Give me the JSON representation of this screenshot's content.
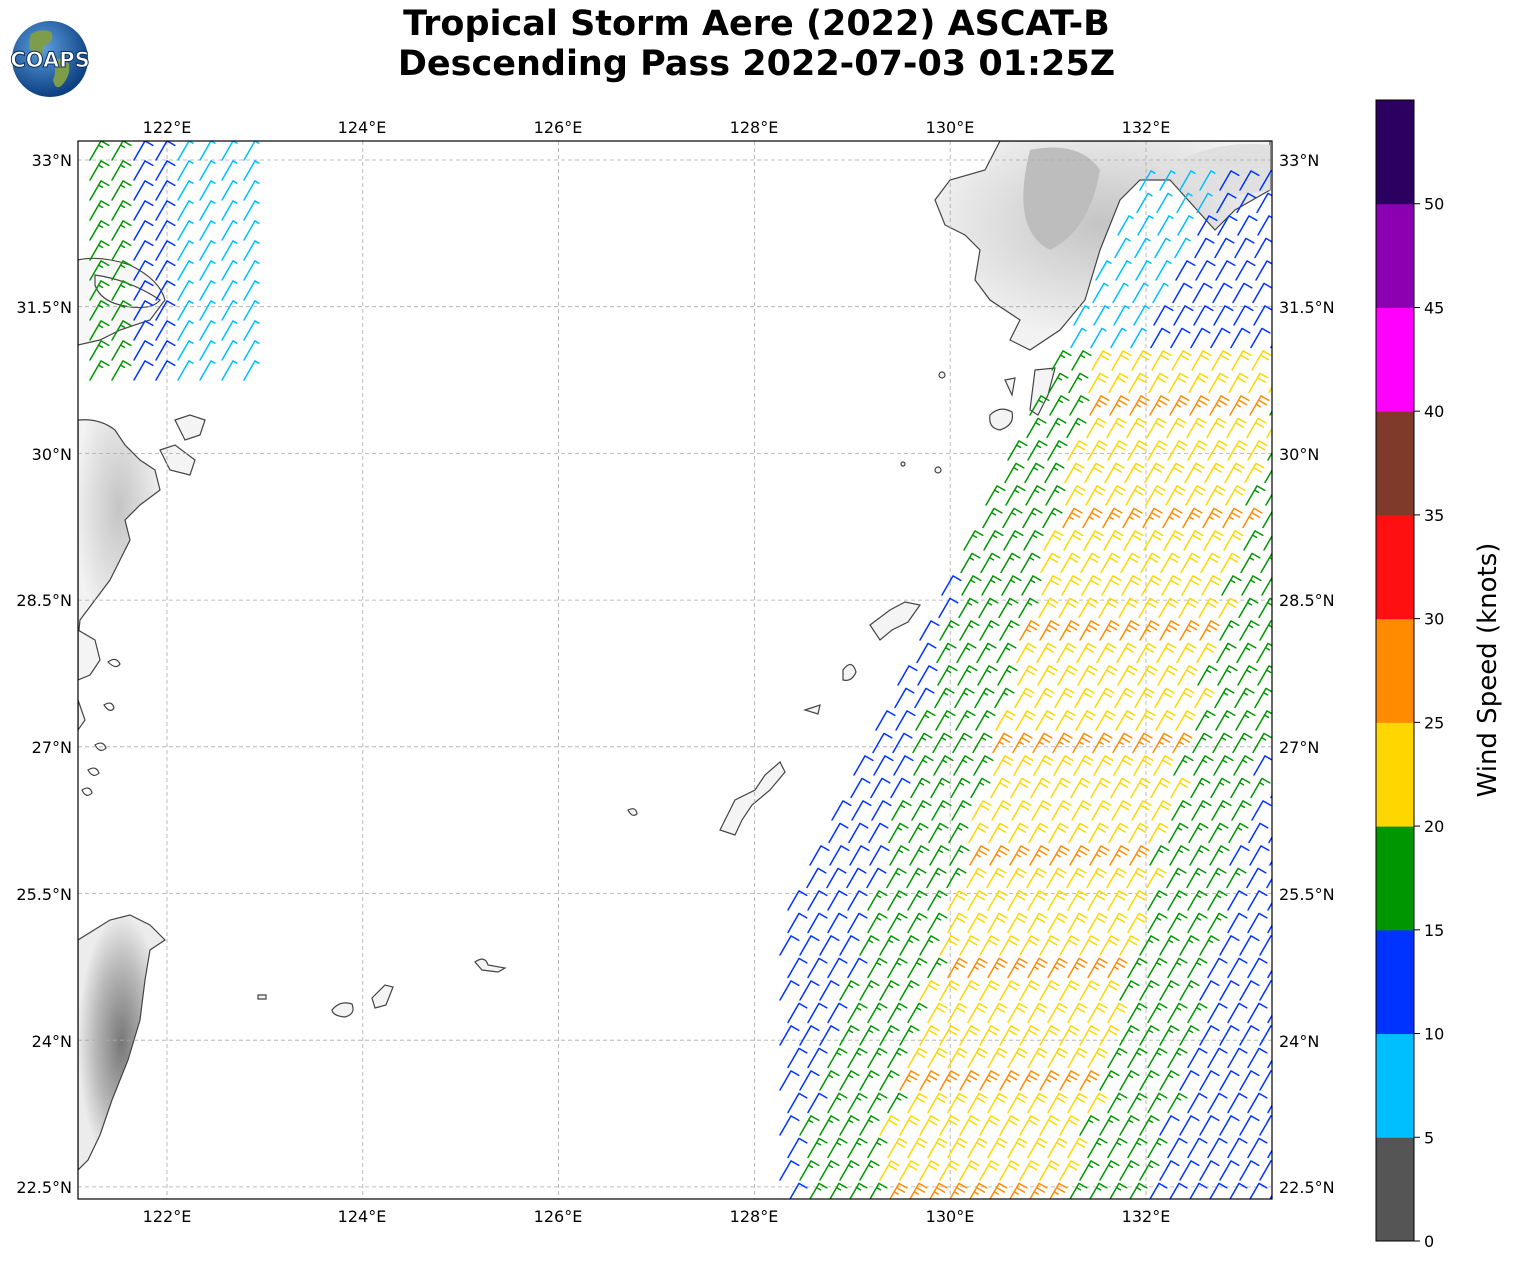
{
  "title": {
    "line1": "Tropical Storm Aere (2022) ASCAT-B",
    "line2": "Descending Pass 2022-07-03 01:25Z"
  },
  "logo": {
    "text": "COAPS",
    "ocean_color": "#1f5fa8",
    "land_color": "#6b8f3a"
  },
  "map": {
    "lon_ticks": [
      "122°E",
      "124°E",
      "126°E",
      "128°E",
      "130°E",
      "132°E"
    ],
    "lat_ticks": [
      "33°N",
      "31.5°N",
      "30°N",
      "28.5°N",
      "27°N",
      "25.5°N",
      "24°N",
      "22.5°N"
    ],
    "grid": true,
    "coastline_color": "#444444",
    "terrain": "grayscale shaded relief"
  },
  "colorbar": {
    "label": "Wind Speed (knots)",
    "ticks": [
      "0",
      "5",
      "10",
      "15",
      "20",
      "25",
      "30",
      "35",
      "40",
      "45",
      "50"
    ],
    "bins": [
      {
        "min": 0,
        "max": 5,
        "color": "#555555"
      },
      {
        "min": 5,
        "max": 10,
        "color": "#00bfff"
      },
      {
        "min": 10,
        "max": 15,
        "color": "#0033ff"
      },
      {
        "min": 15,
        "max": 20,
        "color": "#009600"
      },
      {
        "min": 20,
        "max": 25,
        "color": "#ffd700"
      },
      {
        "min": 25,
        "max": 30,
        "color": "#ff8c00"
      },
      {
        "min": 30,
        "max": 35,
        "color": "#ff1010"
      },
      {
        "min": 35,
        "max": 40,
        "color": "#7f3a2a"
      },
      {
        "min": 40,
        "max": 45,
        "color": "#ff00ff"
      },
      {
        "min": 45,
        "max": 50,
        "color": "#8b00b0"
      },
      {
        "min": 50,
        "max": 55,
        "color": "#2b0060"
      }
    ]
  }
}
